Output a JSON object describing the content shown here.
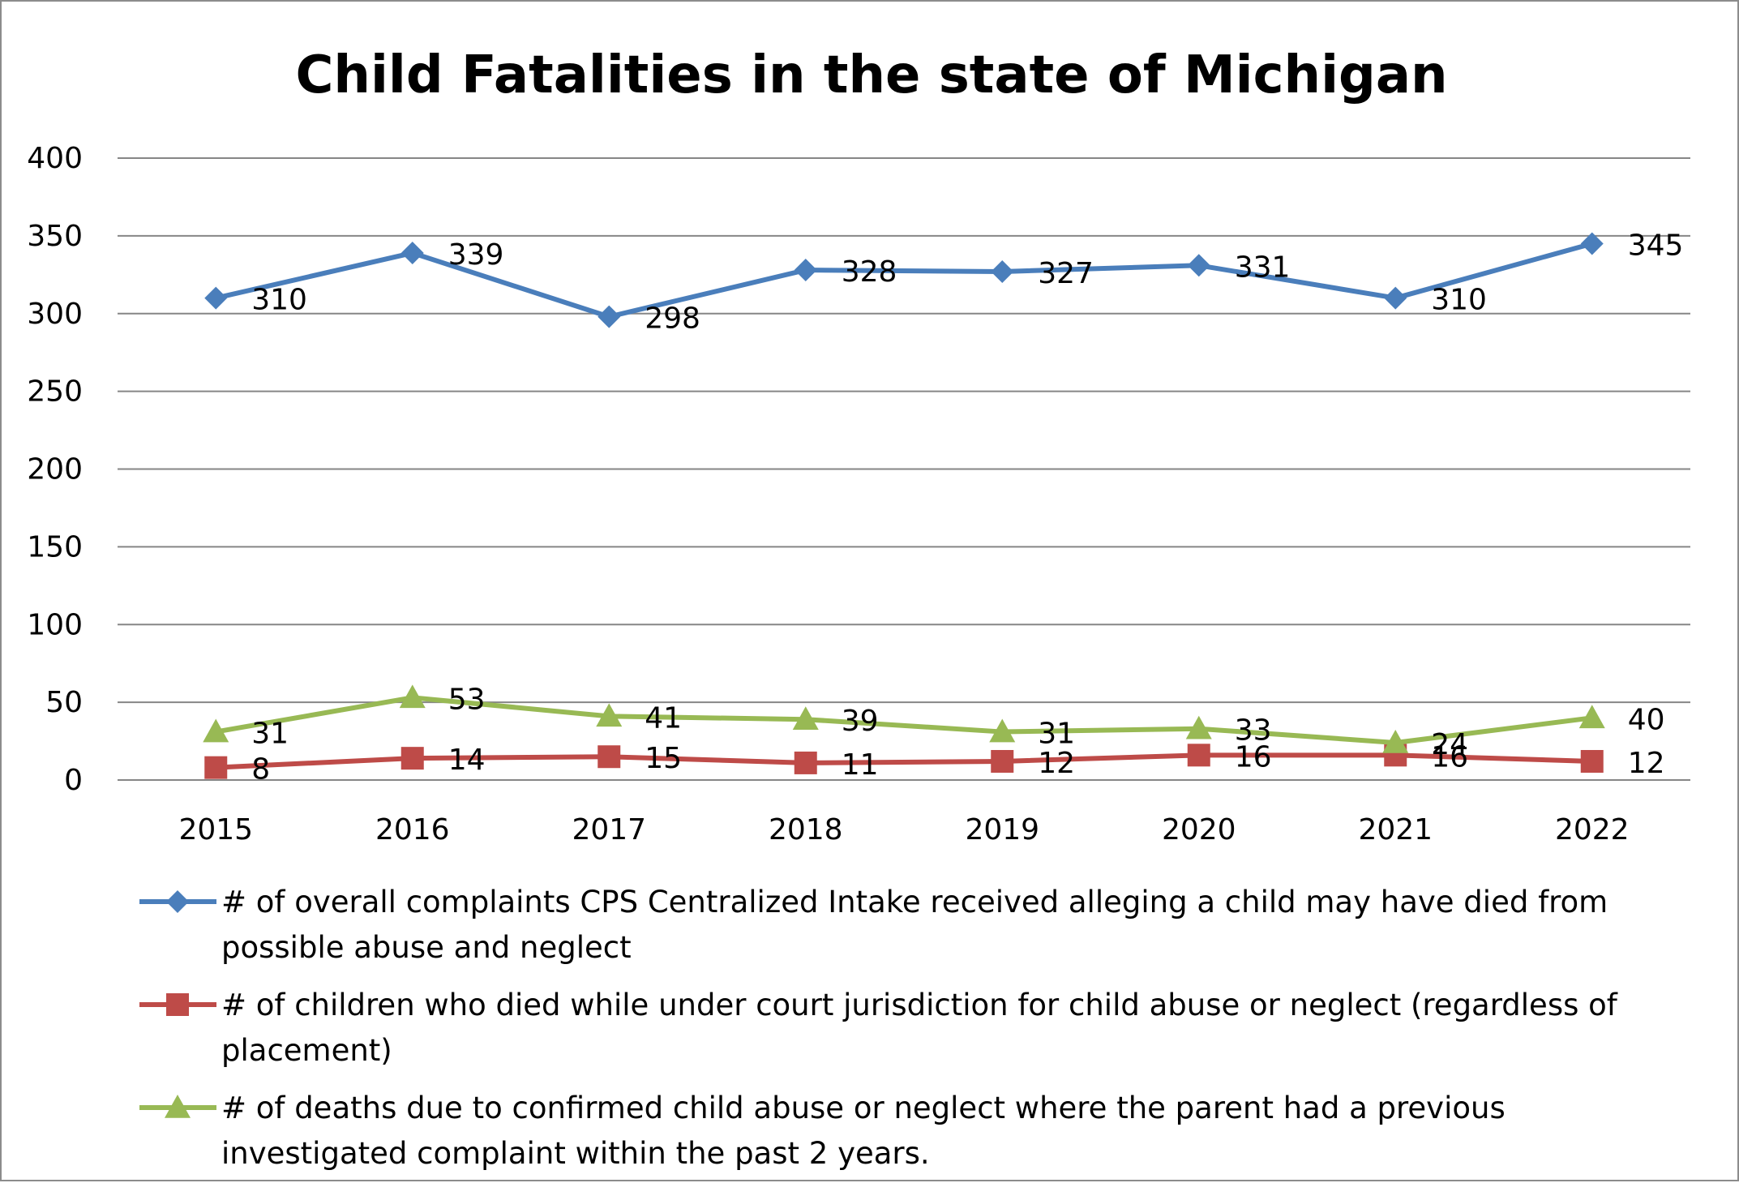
{
  "chart_data": {
    "type": "line",
    "title": "Child Fatalities in the state of Michigan",
    "xlabel": "",
    "ylabel": "",
    "categories": [
      "2015",
      "2016",
      "2017",
      "2018",
      "2019",
      "2020",
      "2021",
      "2022"
    ],
    "ylim": [
      0,
      400
    ],
    "yticks": [
      0,
      50,
      100,
      150,
      200,
      250,
      300,
      350,
      400
    ],
    "grid": true,
    "legend_position": "bottom",
    "series": [
      {
        "name": "# of overall complaints CPS Centralized Intake received alleging a child may have died from possible abuse and neglect",
        "legend_lines": [
          "# of overall complaints CPS Centralized Intake received alleging a child may have died from",
          "possible abuse and neglect"
        ],
        "values": [
          310,
          339,
          298,
          328,
          327,
          331,
          310,
          345
        ],
        "color": "#4a7ebb",
        "marker": "diamond"
      },
      {
        "name": "# of children who died while under court jurisdiction for child abuse or neglect (regardless of placement)",
        "legend_lines": [
          "# of children who died while under court jurisdiction for child abuse or neglect (regardless of",
          "placement)"
        ],
        "values": [
          8,
          14,
          15,
          11,
          12,
          16,
          16,
          12
        ],
        "color": "#be4b48",
        "marker": "square"
      },
      {
        "name": "# of deaths due to confirmed child abuse or neglect where the parent had a previous investigated complaint within the past 2 years.",
        "legend_lines": [
          "# of deaths due to confirmed child abuse or neglect where the parent had a previous",
          "investigated complaint within the past 2 years."
        ],
        "values": [
          31,
          53,
          41,
          39,
          31,
          33,
          24,
          40
        ],
        "color": "#98b954",
        "marker": "triangle"
      }
    ]
  }
}
